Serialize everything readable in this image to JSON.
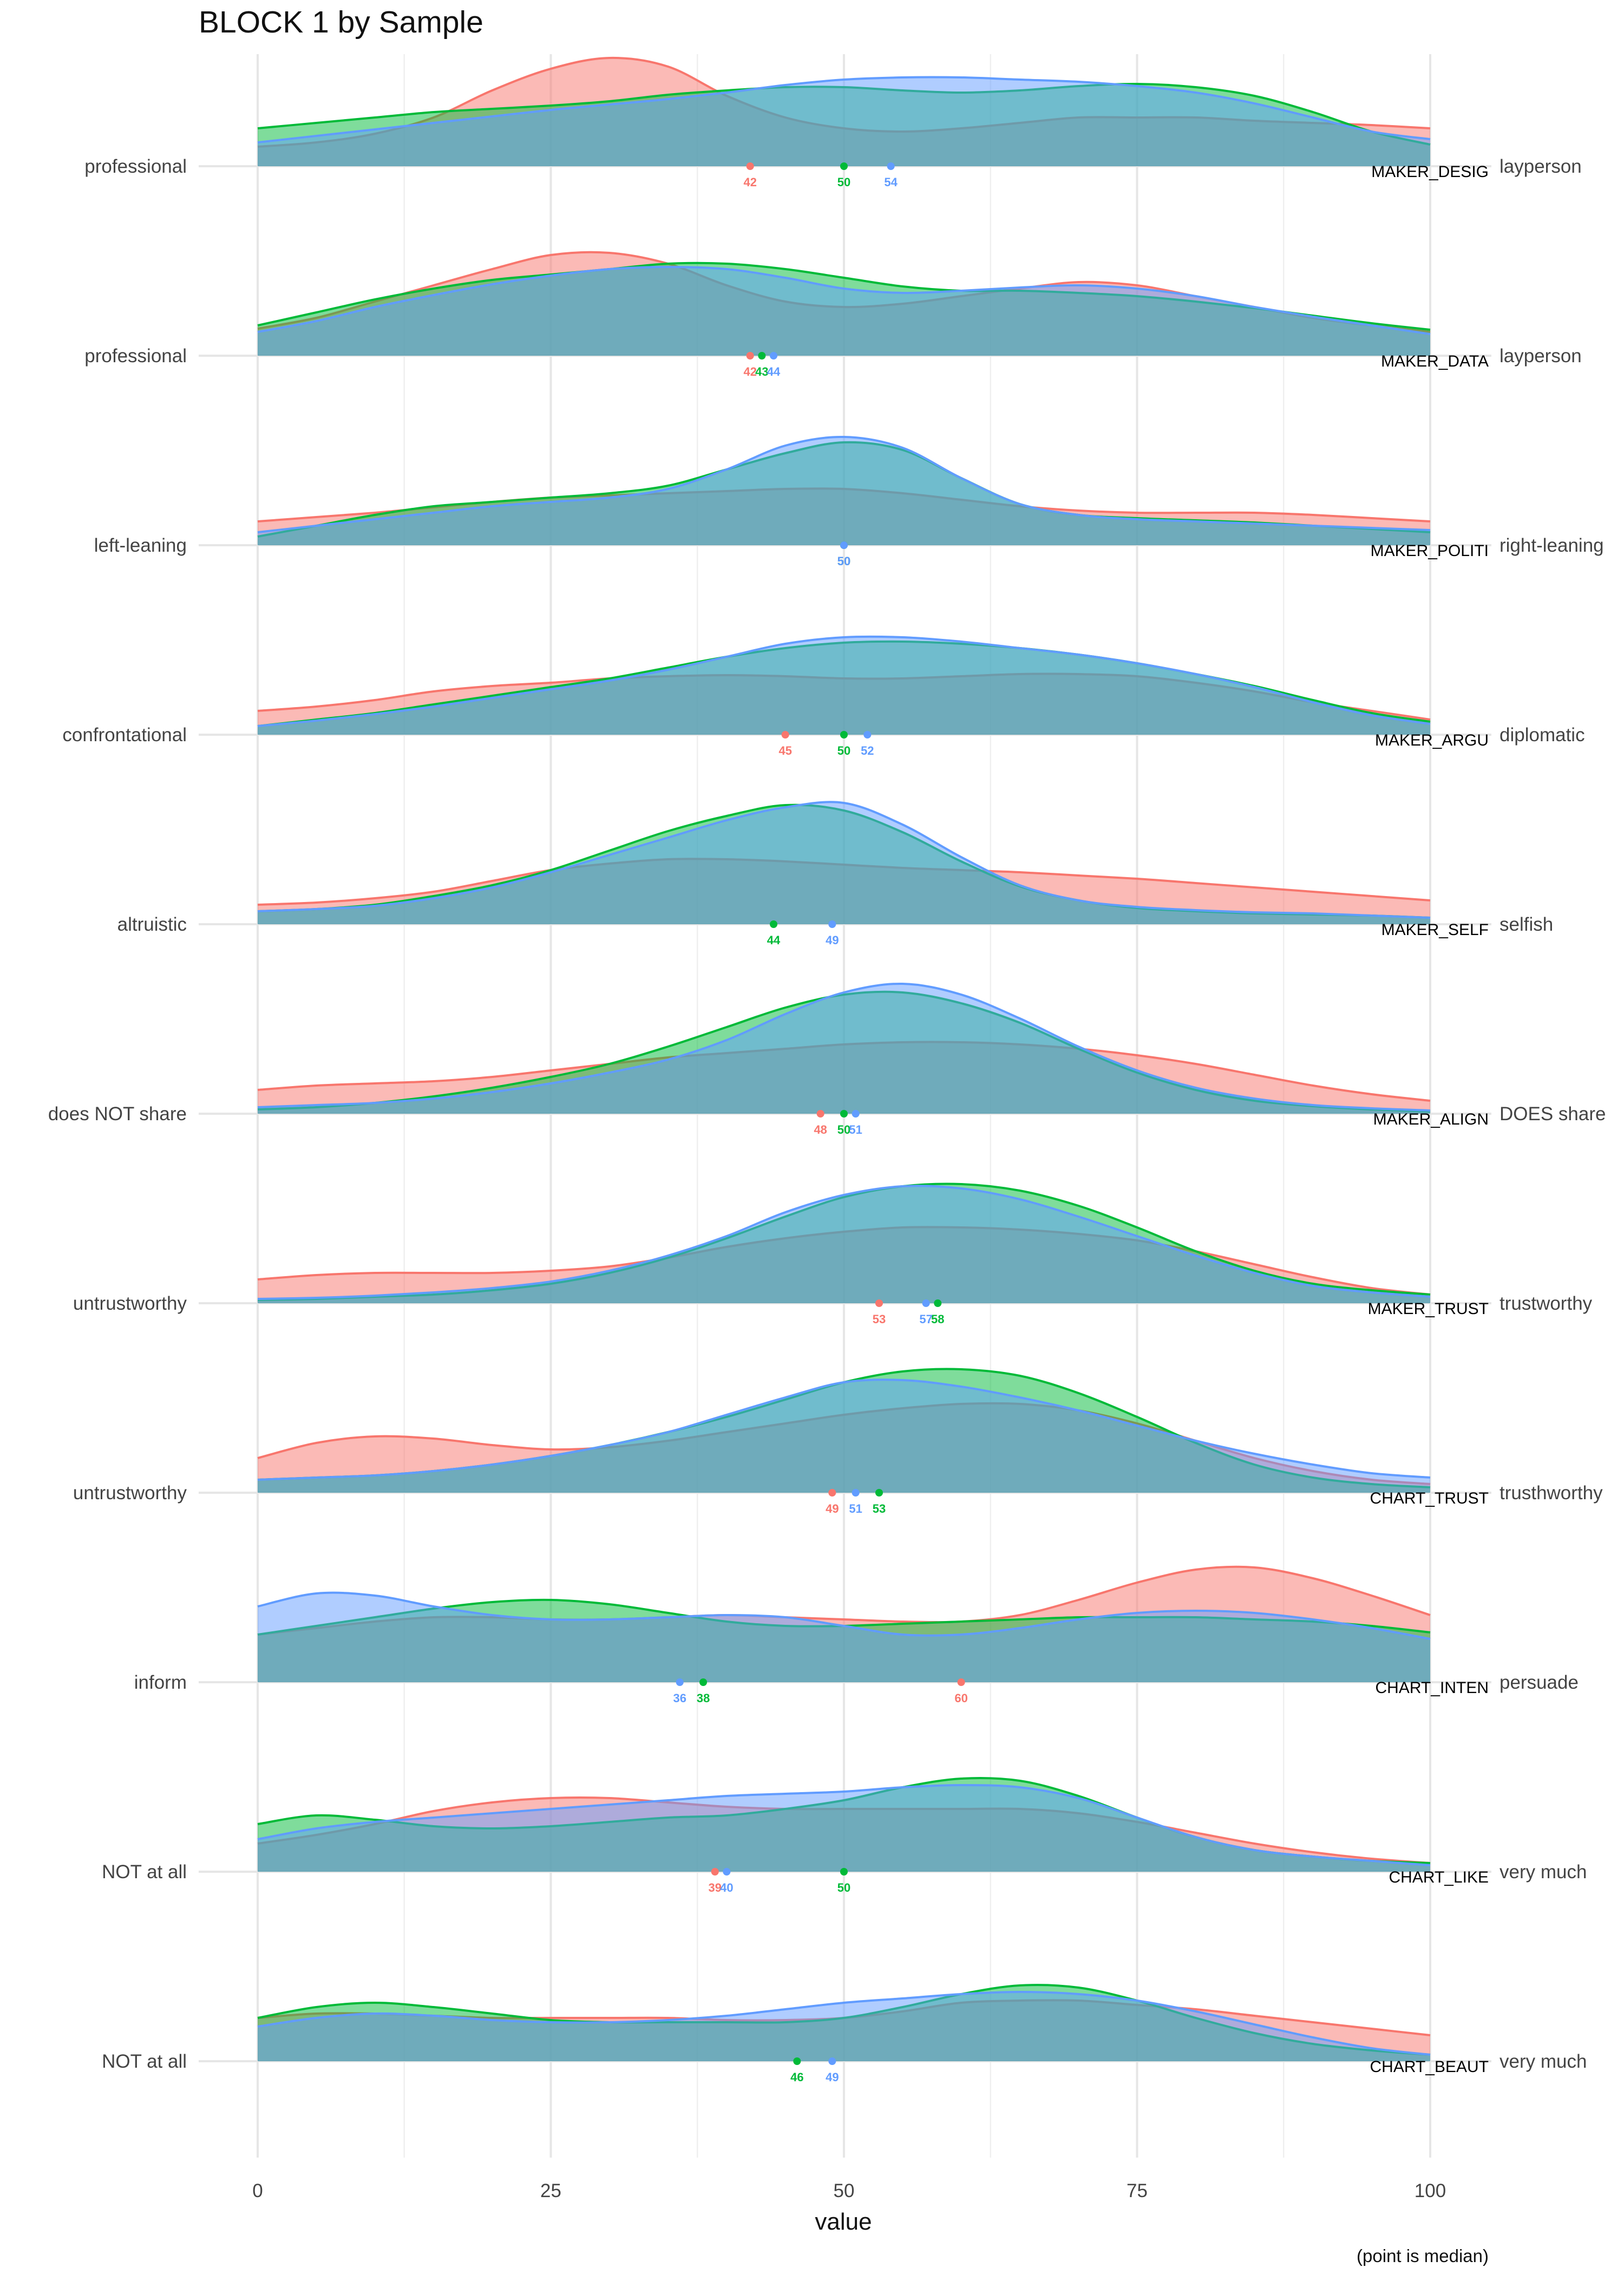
{
  "chart_data": {
    "type": "ridgeline",
    "title": "BLOCK 1 by Sample",
    "xlabel": "value",
    "caption": "(point is median)",
    "xlim": [
      0,
      100
    ],
    "x_ticks": [
      0,
      25,
      50,
      75,
      100
    ],
    "legend": "none",
    "series_colors": [
      "#F8766D",
      "#00BA38",
      "#619CFF"
    ],
    "fill_opacity": 0.5,
    "density_x": [
      0,
      5,
      10,
      15,
      20,
      25,
      30,
      35,
      40,
      45,
      50,
      55,
      60,
      65,
      70,
      75,
      80,
      85,
      90,
      95,
      100
    ],
    "rows": [
      {
        "item": "MAKER_DESIG",
        "left_label": "professional",
        "right_label": "layperson",
        "densities": [
          [
            0.18,
            0.22,
            0.3,
            0.45,
            0.7,
            0.9,
            1.0,
            0.92,
            0.65,
            0.45,
            0.35,
            0.32,
            0.35,
            0.4,
            0.45,
            0.45,
            0.45,
            0.42,
            0.4,
            0.38,
            0.35
          ],
          [
            0.35,
            0.4,
            0.45,
            0.5,
            0.53,
            0.56,
            0.6,
            0.66,
            0.7,
            0.73,
            0.73,
            0.7,
            0.68,
            0.7,
            0.74,
            0.76,
            0.73,
            0.65,
            0.5,
            0.32,
            0.2
          ],
          [
            0.22,
            0.28,
            0.34,
            0.4,
            0.46,
            0.52,
            0.57,
            0.62,
            0.68,
            0.75,
            0.8,
            0.82,
            0.82,
            0.8,
            0.78,
            0.74,
            0.68,
            0.58,
            0.45,
            0.32,
            0.25
          ]
        ],
        "medians": [
          42,
          50,
          54
        ]
      },
      {
        "item": "MAKER_DATA",
        "left_label": "professional",
        "right_label": "layperson",
        "densities": [
          [
            0.25,
            0.35,
            0.5,
            0.65,
            0.8,
            0.93,
            0.95,
            0.85,
            0.65,
            0.5,
            0.45,
            0.48,
            0.55,
            0.62,
            0.68,
            0.65,
            0.55,
            0.45,
            0.35,
            0.28,
            0.22
          ],
          [
            0.28,
            0.4,
            0.52,
            0.62,
            0.7,
            0.75,
            0.8,
            0.85,
            0.85,
            0.8,
            0.72,
            0.64,
            0.6,
            0.6,
            0.58,
            0.55,
            0.5,
            0.44,
            0.37,
            0.3,
            0.24
          ],
          [
            0.22,
            0.32,
            0.45,
            0.56,
            0.66,
            0.74,
            0.8,
            0.82,
            0.8,
            0.72,
            0.62,
            0.58,
            0.6,
            0.63,
            0.65,
            0.62,
            0.55,
            0.45,
            0.36,
            0.28,
            0.2
          ]
        ],
        "medians": [
          42,
          43,
          44
        ]
      },
      {
        "item": "MAKER_POLITI",
        "left_label": "left-leaning",
        "right_label": "right-leaning",
        "densities": [
          [
            0.22,
            0.26,
            0.3,
            0.35,
            0.4,
            0.44,
            0.46,
            0.48,
            0.5,
            0.52,
            0.52,
            0.48,
            0.42,
            0.36,
            0.32,
            0.3,
            0.3,
            0.3,
            0.28,
            0.25,
            0.22
          ],
          [
            0.08,
            0.18,
            0.28,
            0.36,
            0.4,
            0.44,
            0.48,
            0.55,
            0.7,
            0.85,
            0.95,
            0.88,
            0.62,
            0.38,
            0.28,
            0.25,
            0.23,
            0.21,
            0.18,
            0.15,
            0.12
          ],
          [
            0.12,
            0.18,
            0.24,
            0.3,
            0.36,
            0.4,
            0.44,
            0.52,
            0.7,
            0.92,
            1.0,
            0.9,
            0.62,
            0.38,
            0.28,
            0.24,
            0.22,
            0.2,
            0.18,
            0.16,
            0.14
          ]
        ],
        "medians": [
          50,
          50,
          50
        ]
      },
      {
        "item": "MAKER_ARGU",
        "left_label": "confrontational",
        "right_label": "diplomatic",
        "densities": [
          [
            0.22,
            0.26,
            0.32,
            0.4,
            0.45,
            0.48,
            0.52,
            0.54,
            0.55,
            0.54,
            0.52,
            0.52,
            0.54,
            0.56,
            0.56,
            0.54,
            0.48,
            0.4,
            0.3,
            0.22,
            0.14
          ],
          [
            0.08,
            0.14,
            0.2,
            0.28,
            0.36,
            0.44,
            0.52,
            0.62,
            0.72,
            0.8,
            0.85,
            0.86,
            0.84,
            0.8,
            0.74,
            0.66,
            0.56,
            0.45,
            0.32,
            0.2,
            0.12
          ],
          [
            0.08,
            0.13,
            0.19,
            0.26,
            0.34,
            0.42,
            0.5,
            0.6,
            0.72,
            0.84,
            0.9,
            0.9,
            0.86,
            0.8,
            0.74,
            0.66,
            0.56,
            0.44,
            0.3,
            0.18,
            0.1
          ]
        ],
        "medians": [
          45,
          50,
          52
        ]
      },
      {
        "item": "MAKER_SELF",
        "left_label": "altruistic",
        "right_label": "selfish",
        "densities": [
          [
            0.18,
            0.2,
            0.24,
            0.3,
            0.4,
            0.5,
            0.56,
            0.6,
            0.6,
            0.58,
            0.55,
            0.52,
            0.5,
            0.48,
            0.45,
            0.42,
            0.38,
            0.34,
            0.3,
            0.26,
            0.22
          ],
          [
            0.12,
            0.14,
            0.18,
            0.26,
            0.36,
            0.5,
            0.68,
            0.86,
            1.0,
            1.1,
            1.05,
            0.85,
            0.58,
            0.35,
            0.22,
            0.15,
            0.12,
            0.1,
            0.09,
            0.08,
            0.06
          ],
          [
            0.12,
            0.14,
            0.17,
            0.24,
            0.34,
            0.48,
            0.64,
            0.8,
            0.96,
            1.08,
            1.12,
            0.92,
            0.62,
            0.36,
            0.22,
            0.16,
            0.13,
            0.11,
            0.1,
            0.08,
            0.06
          ]
        ],
        "medians": [
          null,
          44,
          49
        ]
      },
      {
        "item": "MAKER_ALIGN",
        "left_label": "does NOT share",
        "right_label": "DOES share",
        "densities": [
          [
            0.22,
            0.26,
            0.28,
            0.3,
            0.34,
            0.4,
            0.46,
            0.52,
            0.56,
            0.6,
            0.64,
            0.66,
            0.66,
            0.64,
            0.6,
            0.54,
            0.46,
            0.36,
            0.26,
            0.18,
            0.12
          ],
          [
            0.04,
            0.06,
            0.1,
            0.16,
            0.24,
            0.34,
            0.46,
            0.62,
            0.8,
            0.98,
            1.1,
            1.12,
            1.02,
            0.84,
            0.6,
            0.38,
            0.22,
            0.12,
            0.07,
            0.04,
            0.02
          ],
          [
            0.06,
            0.08,
            0.1,
            0.14,
            0.2,
            0.28,
            0.38,
            0.5,
            0.68,
            0.92,
            1.12,
            1.2,
            1.1,
            0.88,
            0.62,
            0.4,
            0.24,
            0.14,
            0.08,
            0.05,
            0.03
          ]
        ],
        "medians": [
          48,
          50,
          51
        ]
      },
      {
        "item": "MAKER_TRUST",
        "left_label": "untrustworthy",
        "right_label": "trustworthy",
        "densities": [
          [
            0.22,
            0.26,
            0.28,
            0.28,
            0.28,
            0.3,
            0.34,
            0.42,
            0.52,
            0.6,
            0.66,
            0.7,
            0.7,
            0.68,
            0.64,
            0.58,
            0.48,
            0.36,
            0.24,
            0.14,
            0.08
          ],
          [
            0.03,
            0.04,
            0.06,
            0.08,
            0.12,
            0.18,
            0.28,
            0.42,
            0.6,
            0.8,
            0.98,
            1.08,
            1.1,
            1.04,
            0.9,
            0.7,
            0.48,
            0.3,
            0.18,
            0.12,
            0.08
          ],
          [
            0.04,
            0.05,
            0.07,
            0.1,
            0.14,
            0.2,
            0.3,
            0.44,
            0.62,
            0.84,
            1.0,
            1.08,
            1.06,
            0.96,
            0.8,
            0.62,
            0.44,
            0.28,
            0.16,
            0.1,
            0.06
          ]
        ],
        "medians": [
          53,
          58,
          57
        ]
      },
      {
        "item": "CHART_TRUST",
        "left_label": "untrustworthy",
        "right_label": "trusthworthy",
        "densities": [
          [
            0.32,
            0.46,
            0.52,
            0.5,
            0.44,
            0.4,
            0.42,
            0.48,
            0.56,
            0.64,
            0.72,
            0.78,
            0.82,
            0.82,
            0.76,
            0.64,
            0.48,
            0.32,
            0.2,
            0.12,
            0.08
          ],
          [
            0.12,
            0.14,
            0.16,
            0.2,
            0.26,
            0.34,
            0.44,
            0.56,
            0.7,
            0.86,
            1.02,
            1.12,
            1.14,
            1.08,
            0.92,
            0.7,
            0.46,
            0.26,
            0.14,
            0.08,
            0.05
          ],
          [
            0.12,
            0.14,
            0.16,
            0.2,
            0.26,
            0.34,
            0.44,
            0.56,
            0.72,
            0.88,
            1.02,
            1.04,
            0.98,
            0.88,
            0.76,
            0.62,
            0.48,
            0.36,
            0.26,
            0.18,
            0.14
          ]
        ],
        "medians": [
          49,
          53,
          51
        ]
      },
      {
        "item": "CHART_INTEN",
        "left_label": "inform",
        "right_label": "persuade",
        "densities": [
          [
            0.44,
            0.5,
            0.56,
            0.6,
            0.6,
            0.58,
            0.58,
            0.6,
            0.62,
            0.6,
            0.58,
            0.56,
            0.56,
            0.62,
            0.76,
            0.92,
            1.04,
            1.06,
            0.96,
            0.8,
            0.62
          ],
          [
            0.44,
            0.52,
            0.6,
            0.68,
            0.74,
            0.76,
            0.72,
            0.64,
            0.56,
            0.52,
            0.52,
            0.54,
            0.56,
            0.58,
            0.6,
            0.6,
            0.6,
            0.58,
            0.56,
            0.52,
            0.46
          ],
          [
            0.7,
            0.82,
            0.8,
            0.7,
            0.62,
            0.58,
            0.58,
            0.6,
            0.62,
            0.6,
            0.52,
            0.44,
            0.44,
            0.5,
            0.58,
            0.64,
            0.66,
            0.64,
            0.58,
            0.5,
            0.4
          ]
        ],
        "medians": [
          60,
          38,
          36
        ]
      },
      {
        "item": "CHART_LIKE",
        "left_label": "NOT at all",
        "right_label": "very much",
        "densities": [
          [
            0.26,
            0.34,
            0.44,
            0.56,
            0.64,
            0.68,
            0.68,
            0.64,
            0.6,
            0.58,
            0.58,
            0.58,
            0.58,
            0.58,
            0.54,
            0.46,
            0.36,
            0.26,
            0.18,
            0.12,
            0.08
          ],
          [
            0.44,
            0.52,
            0.48,
            0.42,
            0.4,
            0.42,
            0.46,
            0.5,
            0.52,
            0.58,
            0.66,
            0.78,
            0.86,
            0.84,
            0.7,
            0.5,
            0.32,
            0.2,
            0.14,
            0.1,
            0.08
          ],
          [
            0.3,
            0.4,
            0.46,
            0.5,
            0.54,
            0.58,
            0.62,
            0.66,
            0.7,
            0.72,
            0.74,
            0.78,
            0.8,
            0.78,
            0.68,
            0.5,
            0.32,
            0.2,
            0.14,
            0.1,
            0.06
          ]
        ],
        "medians": [
          39,
          50,
          40
        ]
      },
      {
        "item": "CHART_BEAUT",
        "left_label": "NOT at all",
        "right_label": "very much",
        "densities": [
          [
            0.4,
            0.44,
            0.44,
            0.42,
            0.4,
            0.4,
            0.4,
            0.4,
            0.38,
            0.38,
            0.4,
            0.46,
            0.54,
            0.56,
            0.56,
            0.52,
            0.48,
            0.42,
            0.36,
            0.3,
            0.24
          ],
          [
            0.4,
            0.5,
            0.54,
            0.5,
            0.44,
            0.38,
            0.36,
            0.36,
            0.36,
            0.36,
            0.4,
            0.5,
            0.62,
            0.7,
            0.68,
            0.56,
            0.4,
            0.26,
            0.16,
            0.1,
            0.06
          ],
          [
            0.32,
            0.4,
            0.44,
            0.42,
            0.38,
            0.36,
            0.36,
            0.38,
            0.42,
            0.48,
            0.54,
            0.58,
            0.62,
            0.64,
            0.62,
            0.56,
            0.46,
            0.34,
            0.22,
            0.12,
            0.06
          ]
        ],
        "medians": [
          null,
          46,
          49
        ]
      }
    ]
  }
}
